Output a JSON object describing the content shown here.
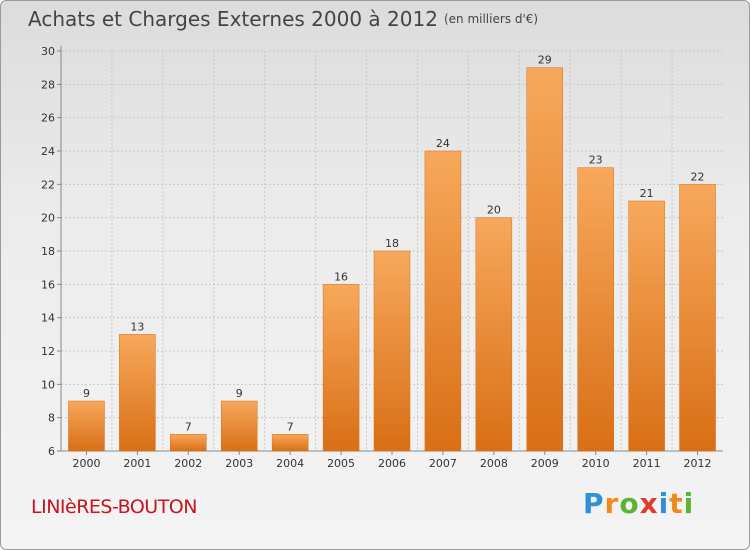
{
  "title": "Achats et Charges Externes 2000 à 2012",
  "unit": "(en milliers d'€)",
  "location": "LINIèRES-BOUTON",
  "brand": {
    "letters": [
      "P",
      "r",
      "o",
      "x",
      "i",
      "t",
      "i"
    ],
    "colors": [
      "#2f8fd8",
      "#f08a1c",
      "#5cb531",
      "#e03a2e",
      "#2f8fd8",
      "#f08a1c",
      "#5cb531"
    ]
  },
  "colors": {
    "bar_top": "#f7a85c",
    "bar_bottom": "#d96f16",
    "grid": "#c8c8c8",
    "title": "#444444",
    "location": "#c8141e"
  },
  "chart_data": {
    "type": "bar",
    "categories": [
      "2000",
      "2001",
      "2002",
      "2003",
      "2004",
      "2005",
      "2006",
      "2007",
      "2008",
      "2009",
      "2010",
      "2011",
      "2012"
    ],
    "values": [
      9,
      13,
      7,
      9,
      7,
      16,
      18,
      24,
      20,
      29,
      23,
      21,
      22
    ],
    "ylim": [
      6,
      30
    ],
    "yticks": [
      6,
      8,
      10,
      12,
      14,
      16,
      18,
      20,
      22,
      24,
      26,
      28,
      30
    ],
    "grid": true
  }
}
